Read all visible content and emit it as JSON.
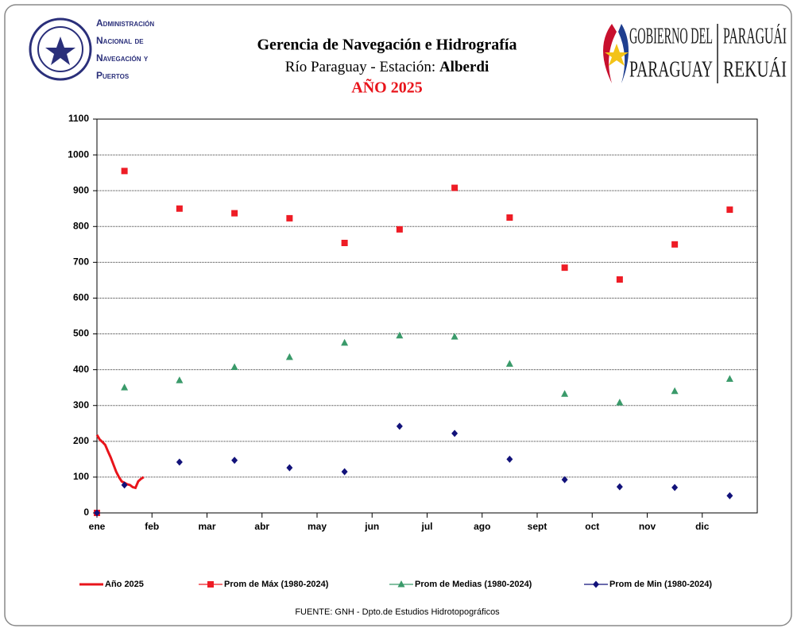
{
  "header": {
    "agency": [
      "Administración",
      "Nacional de",
      "Navegación y",
      "Puertos"
    ],
    "gov_left": [
      "GOBIERNO DEL",
      "PARAGUAY"
    ],
    "gov_right": [
      "PARAGUÁI",
      "REKUÁI"
    ]
  },
  "chart_data": {
    "type": "line",
    "title": "Gerencia de Navegación e Hidrografía",
    "subtitle": "Río Paraguay  -  Estación:",
    "station": "Alberdi",
    "year_label": "AÑO 2025",
    "source": "FUENTE:  GNH  - Dpto.de Estudios Hidrotopográficos",
    "xlim": [
      0,
      12
    ],
    "xticks": [
      {
        "value": 0,
        "label": "ene"
      },
      {
        "value": 1,
        "label": "feb"
      },
      {
        "value": 2,
        "label": "mar"
      },
      {
        "value": 3,
        "label": "abr"
      },
      {
        "value": 4,
        "label": "may"
      },
      {
        "value": 5,
        "label": "jun"
      },
      {
        "value": 6,
        "label": "jul"
      },
      {
        "value": 7,
        "label": "ago"
      },
      {
        "value": 8,
        "label": "sept"
      },
      {
        "value": 9,
        "label": "oct"
      },
      {
        "value": 10,
        "label": "nov"
      },
      {
        "value": 11,
        "label": "dic"
      }
    ],
    "ylim": [
      0,
      1100
    ],
    "yticks": [
      0,
      100,
      200,
      300,
      400,
      500,
      600,
      700,
      800,
      900,
      1000,
      1100
    ],
    "grid": true,
    "legend": "bottom",
    "series": [
      {
        "name": "Año 2025",
        "color": "#e8141b",
        "marker": "line",
        "x": [
          0,
          0.05,
          0.1,
          0.15,
          0.2,
          0.25,
          0.3,
          0.35,
          0.4,
          0.45,
          0.5,
          0.55,
          0.6,
          0.65,
          0.7,
          0.75,
          0.8,
          0.85
        ],
        "values": [
          218,
          205,
          198,
          190,
          172,
          155,
          135,
          115,
          100,
          88,
          84,
          80,
          78,
          72,
          70,
          88,
          95,
          100
        ]
      },
      {
        "name": "Prom de Máx (1980-2024)",
        "color": "#ee1c25",
        "marker": "square",
        "x": [
          0,
          0.5,
          1.5,
          2.5,
          3.5,
          4.5,
          5.5,
          6.5,
          7.5,
          8.5,
          9.5,
          10.5,
          11.5
        ],
        "values": [
          0,
          955,
          850,
          837,
          823,
          754,
          792,
          908,
          825,
          685,
          652,
          750,
          847
        ]
      },
      {
        "name": "Prom de Medias (1980-2024)",
        "color": "#3a9a6a",
        "marker": "triangle",
        "x": [
          0.5,
          1.5,
          2.5,
          3.5,
          4.5,
          5.5,
          6.5,
          7.5,
          8.5,
          9.5,
          10.5,
          11.5
        ],
        "values": [
          350,
          370,
          407,
          435,
          475,
          495,
          492,
          416,
          332,
          308,
          340,
          374
        ]
      },
      {
        "name": "Prom de Min (1980-2024)",
        "color": "#12127a",
        "marker": "diamond",
        "x": [
          0,
          0.5,
          1.5,
          2.5,
          3.5,
          4.5,
          5.5,
          6.5,
          7.5,
          8.5,
          9.5,
          10.5,
          11.5
        ],
        "values": [
          0,
          78,
          142,
          147,
          126,
          115,
          242,
          222,
          150,
          93,
          73,
          71,
          48
        ]
      }
    ]
  }
}
